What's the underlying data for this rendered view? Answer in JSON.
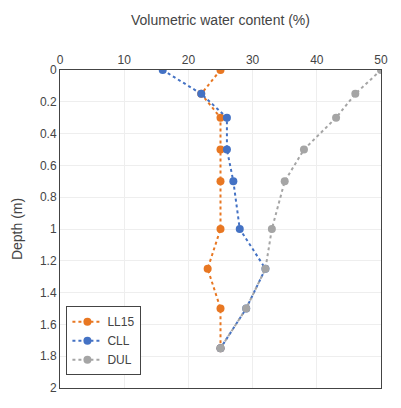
{
  "chart_data": {
    "type": "line",
    "xlabel": "Volumetric water content (%)",
    "ylabel": "Depth (m)",
    "xlim": [
      0,
      50
    ],
    "ylim": [
      2,
      0
    ],
    "xticks": [
      0,
      10,
      20,
      30,
      40,
      50
    ],
    "yticks": [
      0,
      0.2,
      0.4,
      0.6,
      0.8,
      1,
      1.2,
      1.4,
      1.6,
      1.8,
      2
    ],
    "grid": true,
    "legend": "lower left",
    "marker": "circle",
    "line_style": "dotted",
    "series": [
      {
        "name": "LL15",
        "color": "#E87722",
        "x": [
          25,
          22,
          25,
          25,
          25,
          25,
          23,
          25,
          25
        ],
        "y": [
          0.0,
          0.15,
          0.3,
          0.5,
          0.7,
          1.0,
          1.25,
          1.5,
          1.75
        ]
      },
      {
        "name": "CLL",
        "color": "#4472C4",
        "x": [
          16,
          22,
          26,
          26,
          27,
          28,
          32,
          29,
          25
        ],
        "y": [
          0.0,
          0.15,
          0.3,
          0.5,
          0.7,
          1.0,
          1.25,
          1.5,
          1.75
        ]
      },
      {
        "name": "DUL",
        "color": "#A5A5A5",
        "x": [
          50,
          46,
          43,
          38,
          35,
          33,
          32,
          29,
          25
        ],
        "y": [
          0.0,
          0.15,
          0.3,
          0.5,
          0.7,
          1.0,
          1.25,
          1.5,
          1.75
        ]
      }
    ]
  }
}
